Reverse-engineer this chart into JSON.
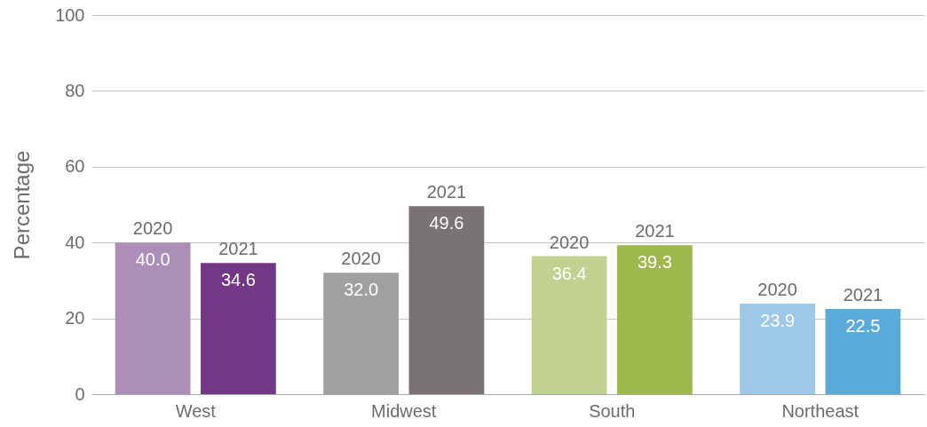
{
  "chart_data": {
    "type": "bar",
    "ylabel": "Percentage",
    "categories": [
      "West",
      "Midwest",
      "South",
      "Northeast"
    ],
    "series": [
      {
        "name": "2020",
        "colors": [
          "#ab8fb9",
          "#a0a0a2",
          "#c1d290",
          "#9dc8e7"
        ],
        "values": [
          40.0,
          32.0,
          36.4,
          23.9
        ],
        "value_labels": [
          "40.0",
          "32.0",
          "36.4",
          "23.9"
        ]
      },
      {
        "name": "2021",
        "colors": [
          "#723886",
          "#797373",
          "#9db84b",
          "#5babda"
        ],
        "values": [
          34.6,
          49.6,
          39.3,
          22.5
        ],
        "value_labels": [
          "34.6",
          "49.6",
          "39.3",
          "22.5"
        ]
      }
    ],
    "ylim": [
      0,
      100
    ],
    "yticks": [
      0,
      20,
      40,
      60,
      80,
      100
    ],
    "grid": "y"
  }
}
